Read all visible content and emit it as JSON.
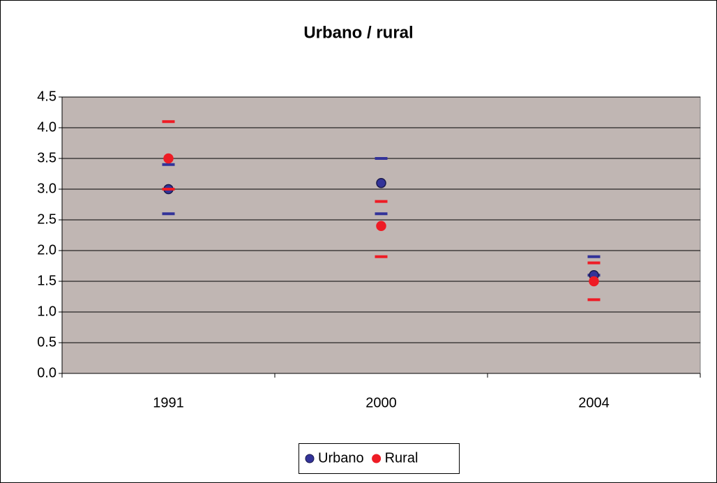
{
  "chart_data": {
    "type": "dot-range",
    "title": "Urbano / rural",
    "categories": [
      "1991",
      "2000",
      "2004"
    ],
    "series": [
      {
        "name": "Urbano",
        "color": "#333399",
        "values": [
          3.0,
          3.1,
          1.6
        ],
        "high": [
          3.4,
          3.5,
          1.9
        ],
        "low": [
          2.6,
          2.6,
          1.6
        ]
      },
      {
        "name": "Rural",
        "color": "#ee1c25",
        "values": [
          3.5,
          2.4,
          1.5
        ],
        "high": [
          4.1,
          2.8,
          1.8
        ],
        "low": [
          3.0,
          1.9,
          1.2
        ]
      }
    ],
    "ylim": [
      0,
      4.5
    ],
    "yticks": [
      {
        "value": 0,
        "label": "0.0"
      },
      0.5,
      {
        "value": 1,
        "label": "1.0"
      },
      1.5,
      {
        "value": 2,
        "label": "2.0"
      },
      2.5,
      {
        "value": 3,
        "label": "3.0"
      },
      3.5,
      {
        "value": 4,
        "label": "4.0"
      },
      4.5
    ],
    "grid": true,
    "legend": "bottom",
    "plot_background": "#c0b6b3"
  }
}
